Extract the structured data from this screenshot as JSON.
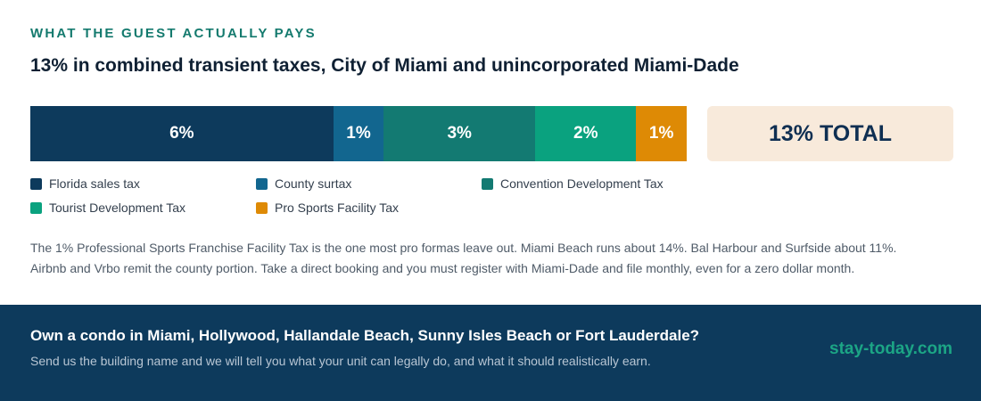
{
  "eyebrow": "WHAT THE GUEST ACTUALLY PAYS",
  "title": "13% in combined transient taxes, City of Miami and unincorporated Miami-Dade",
  "chart_data": {
    "type": "bar",
    "orientation": "horizontal-stacked",
    "unit": "%",
    "categories": [
      "Florida sales tax",
      "County surtax",
      "Convention Development Tax",
      "Tourist Development Tax",
      "Pro Sports Facility Tax"
    ],
    "values": [
      6,
      1,
      3,
      2,
      1
    ],
    "labels": [
      "6%",
      "1%",
      "3%",
      "2%",
      "1%"
    ],
    "colors": [
      "#0d3a5c",
      "#12668f",
      "#137a72",
      "#0aa27f",
      "#de8a05"
    ],
    "total_label": "13% TOTAL",
    "legend_position": "bottom-left"
  },
  "note": {
    "line1": "The 1% Professional Sports Franchise Facility Tax is the one most pro formas leave out. Miami Beach runs about 14%. Bal Harbour and Surfside about 11%.",
    "line2": "Airbnb and Vrbo remit the county portion. Take a direct booking and you must register with Miami-Dade and file monthly, even for a zero dollar month."
  },
  "footer": {
    "title": "Own a condo in Miami, Hollywood, Hallandale Beach, Sunny Isles Beach or Fort Lauderdale?",
    "subtitle": "Send us the building name and we will tell you what your unit can legally do, and what it should realistically earn.",
    "brand": "stay-today.com"
  }
}
